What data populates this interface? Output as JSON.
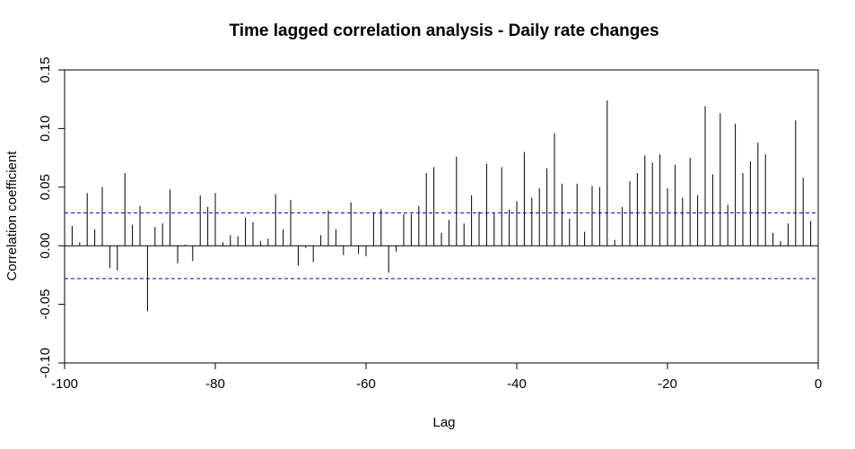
{
  "chart_data": {
    "type": "bar",
    "title": "Time lagged correlation analysis - Daily rate changes",
    "xlabel": "Lag",
    "ylabel": "Correlation coefficient",
    "xlim": [
      -100,
      0
    ],
    "ylim": [
      -0.1,
      0.15
    ],
    "x_ticks": [
      -100,
      -80,
      -60,
      -40,
      -20,
      0
    ],
    "x_tick_labels": [
      "-100",
      "-80",
      "-60",
      "-40",
      "-20",
      "0"
    ],
    "y_ticks": [
      -0.1,
      -0.05,
      0.0,
      0.05,
      0.1,
      0.15
    ],
    "y_tick_labels": [
      "-0.10",
      "-0.05",
      "0.00",
      "0.05",
      "0.10",
      "0.15"
    ],
    "significance_bounds": [
      0.028,
      -0.028
    ],
    "colors": {
      "bars": "#000000",
      "bounds": "#0000cc",
      "zero_line": "#000000"
    },
    "lags": [
      -99,
      -98,
      -97,
      -96,
      -95,
      -94,
      -93,
      -92,
      -91,
      -90,
      -89,
      -88,
      -87,
      -86,
      -85,
      -84,
      -83,
      -82,
      -81,
      -80,
      -79,
      -78,
      -77,
      -76,
      -75,
      -74,
      -73,
      -72,
      -71,
      -70,
      -69,
      -68,
      -67,
      -66,
      -65,
      -64,
      -63,
      -62,
      -61,
      -60,
      -59,
      -58,
      -57,
      -56,
      -55,
      -54,
      -53,
      -52,
      -51,
      -50,
      -49,
      -48,
      -47,
      -46,
      -45,
      -44,
      -43,
      -42,
      -41,
      -40,
      -39,
      -38,
      -37,
      -36,
      -35,
      -34,
      -33,
      -32,
      -31,
      -30,
      -29,
      -28,
      -27,
      -26,
      -25,
      -24,
      -23,
      -22,
      -21,
      -20,
      -19,
      -18,
      -17,
      -16,
      -15,
      -14,
      -13,
      -12,
      -11,
      -10,
      -9,
      -8,
      -7,
      -6,
      -5,
      -4,
      -3,
      -2,
      -1
    ],
    "values": [
      0.017,
      0.003,
      0.045,
      0.014,
      0.05,
      -0.019,
      -0.021,
      0.062,
      0.018,
      0.034,
      -0.056,
      0.016,
      0.019,
      0.048,
      -0.015,
      0.001,
      -0.013,
      0.043,
      0.033,
      0.045,
      0.003,
      0.009,
      0.008,
      0.024,
      0.02,
      0.004,
      0.006,
      0.044,
      0.014,
      0.039,
      -0.017,
      -0.002,
      -0.014,
      0.009,
      0.03,
      0.014,
      -0.008,
      0.037,
      -0.007,
      -0.009,
      0.028,
      0.031,
      -0.023,
      -0.005,
      0.027,
      0.027,
      0.034,
      0.062,
      0.067,
      0.011,
      0.022,
      0.076,
      0.019,
      0.043,
      0.029,
      0.07,
      0.028,
      0.067,
      0.031,
      0.038,
      0.08,
      0.041,
      0.049,
      0.066,
      0.096,
      0.053,
      0.023,
      0.053,
      0.012,
      0.051,
      0.05,
      0.124,
      0.005,
      0.033,
      0.055,
      0.062,
      0.077,
      0.071,
      0.078,
      0.049,
      0.069,
      0.041,
      0.075,
      0.043,
      0.119,
      0.061,
      0.113,
      0.035,
      0.104,
      0.062,
      0.072,
      0.088,
      0.078,
      0.011,
      0.004,
      0.019,
      0.107,
      0.058,
      0.021
    ]
  }
}
